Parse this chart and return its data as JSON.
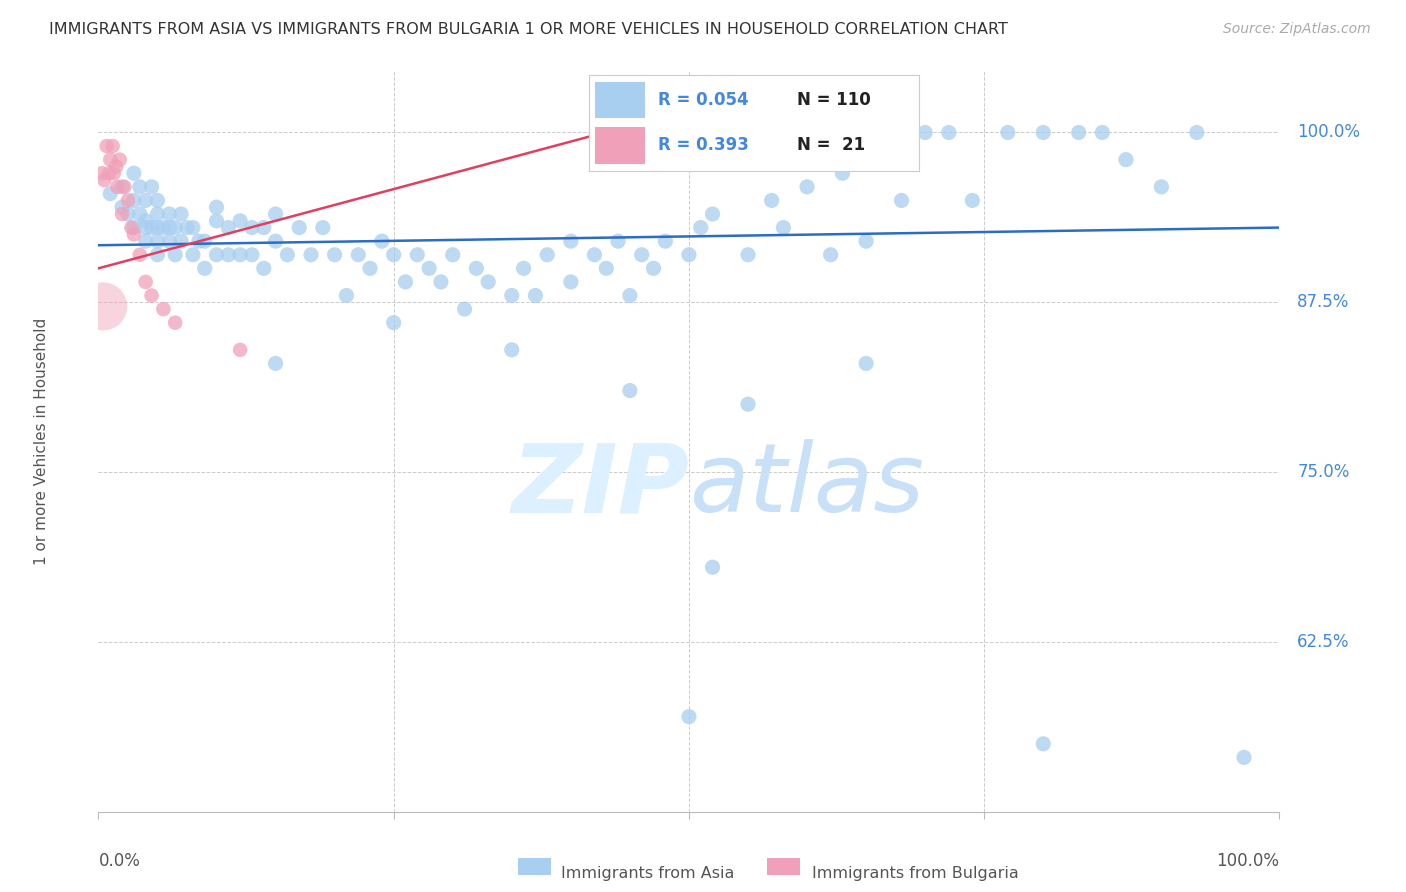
{
  "title": "IMMIGRANTS FROM ASIA VS IMMIGRANTS FROM BULGARIA 1 OR MORE VEHICLES IN HOUSEHOLD CORRELATION CHART",
  "source": "Source: ZipAtlas.com",
  "ylabel": "1 or more Vehicles in Household",
  "xlim": [
    0.0,
    1.0
  ],
  "ylim": [
    0.5,
    1.045
  ],
  "blue_color": "#A8CEF0",
  "pink_color": "#F0A0B8",
  "blue_line_color": "#2B6CC4",
  "pink_line_color": "#E04060",
  "title_color": "#333333",
  "source_color": "#AAAAAA",
  "axis_label_color": "#555555",
  "right_axis_color": "#4488DD",
  "watermark_color": "#DCF0FF",
  "legend_R_color": "#4488DD",
  "legend_N_color": "#222222",
  "grid_color": "#CCCCCC",
  "asia_x": [
    0.01,
    0.02,
    0.02,
    0.025,
    0.03,
    0.03,
    0.03,
    0.035,
    0.035,
    0.04,
    0.04,
    0.04,
    0.04,
    0.045,
    0.045,
    0.05,
    0.05,
    0.05,
    0.05,
    0.05,
    0.055,
    0.06,
    0.06,
    0.06,
    0.065,
    0.065,
    0.07,
    0.07,
    0.075,
    0.08,
    0.08,
    0.085,
    0.09,
    0.09,
    0.1,
    0.1,
    0.1,
    0.11,
    0.11,
    0.12,
    0.12,
    0.13,
    0.13,
    0.14,
    0.14,
    0.15,
    0.15,
    0.16,
    0.17,
    0.18,
    0.19,
    0.2,
    0.21,
    0.22,
    0.23,
    0.24,
    0.25,
    0.26,
    0.27,
    0.28,
    0.29,
    0.3,
    0.31,
    0.32,
    0.33,
    0.35,
    0.36,
    0.37,
    0.38,
    0.4,
    0.4,
    0.42,
    0.43,
    0.44,
    0.45,
    0.46,
    0.47,
    0.48,
    0.5,
    0.51,
    0.52,
    0.55,
    0.57,
    0.58,
    0.6,
    0.62,
    0.63,
    0.65,
    0.67,
    0.68,
    0.7,
    0.72,
    0.74,
    0.77,
    0.8,
    0.83,
    0.85,
    0.87,
    0.9,
    0.93,
    0.5,
    0.52,
    0.8,
    0.97,
    0.15,
    0.25,
    0.35,
    0.45,
    0.55,
    0.65
  ],
  "asia_y": [
    0.955,
    0.945,
    0.96,
    0.94,
    0.93,
    0.95,
    0.97,
    0.94,
    0.96,
    0.92,
    0.935,
    0.95,
    0.93,
    0.93,
    0.96,
    0.91,
    0.93,
    0.95,
    0.92,
    0.94,
    0.93,
    0.92,
    0.94,
    0.93,
    0.91,
    0.93,
    0.92,
    0.94,
    0.93,
    0.91,
    0.93,
    0.92,
    0.9,
    0.92,
    0.935,
    0.91,
    0.945,
    0.93,
    0.91,
    0.935,
    0.91,
    0.93,
    0.91,
    0.93,
    0.9,
    0.92,
    0.94,
    0.91,
    0.93,
    0.91,
    0.93,
    0.91,
    0.88,
    0.91,
    0.9,
    0.92,
    0.91,
    0.89,
    0.91,
    0.9,
    0.89,
    0.91,
    0.87,
    0.9,
    0.89,
    0.88,
    0.9,
    0.88,
    0.91,
    0.92,
    0.89,
    0.91,
    0.9,
    0.92,
    0.88,
    0.91,
    0.9,
    0.92,
    0.91,
    0.93,
    0.94,
    0.91,
    0.95,
    0.93,
    0.96,
    0.91,
    0.97,
    0.92,
    0.98,
    0.95,
    1.0,
    1.0,
    0.95,
    1.0,
    1.0,
    1.0,
    1.0,
    0.98,
    0.96,
    1.0,
    0.57,
    0.68,
    0.55,
    0.54,
    0.83,
    0.86,
    0.84,
    0.81,
    0.8,
    0.83
  ],
  "bulgaria_x": [
    0.003,
    0.005,
    0.007,
    0.009,
    0.01,
    0.012,
    0.013,
    0.015,
    0.016,
    0.018,
    0.02,
    0.022,
    0.025,
    0.028,
    0.03,
    0.035,
    0.04,
    0.045,
    0.055,
    0.065,
    0.12
  ],
  "bulgaria_y": [
    0.97,
    0.965,
    0.99,
    0.97,
    0.98,
    0.99,
    0.97,
    0.975,
    0.96,
    0.98,
    0.94,
    0.96,
    0.95,
    0.93,
    0.925,
    0.91,
    0.89,
    0.88,
    0.87,
    0.86,
    0.84
  ],
  "bulgaria_large_x": [
    0.004
  ],
  "bulgaria_large_y": [
    0.872
  ],
  "bulgaria_large_size": 1200,
  "blue_trend_x0": 0.0,
  "blue_trend_x1": 1.0,
  "blue_trend_y0": 0.917,
  "blue_trend_y1": 0.93,
  "pink_trend_x0": 0.0,
  "pink_trend_x1": 0.45,
  "pink_trend_y0": 0.9,
  "pink_trend_y1": 1.005,
  "right_ticks": {
    "1.0": "100.0%",
    "0.875": "87.5%",
    "0.75": "75.0%",
    "0.625": "62.5%"
  }
}
